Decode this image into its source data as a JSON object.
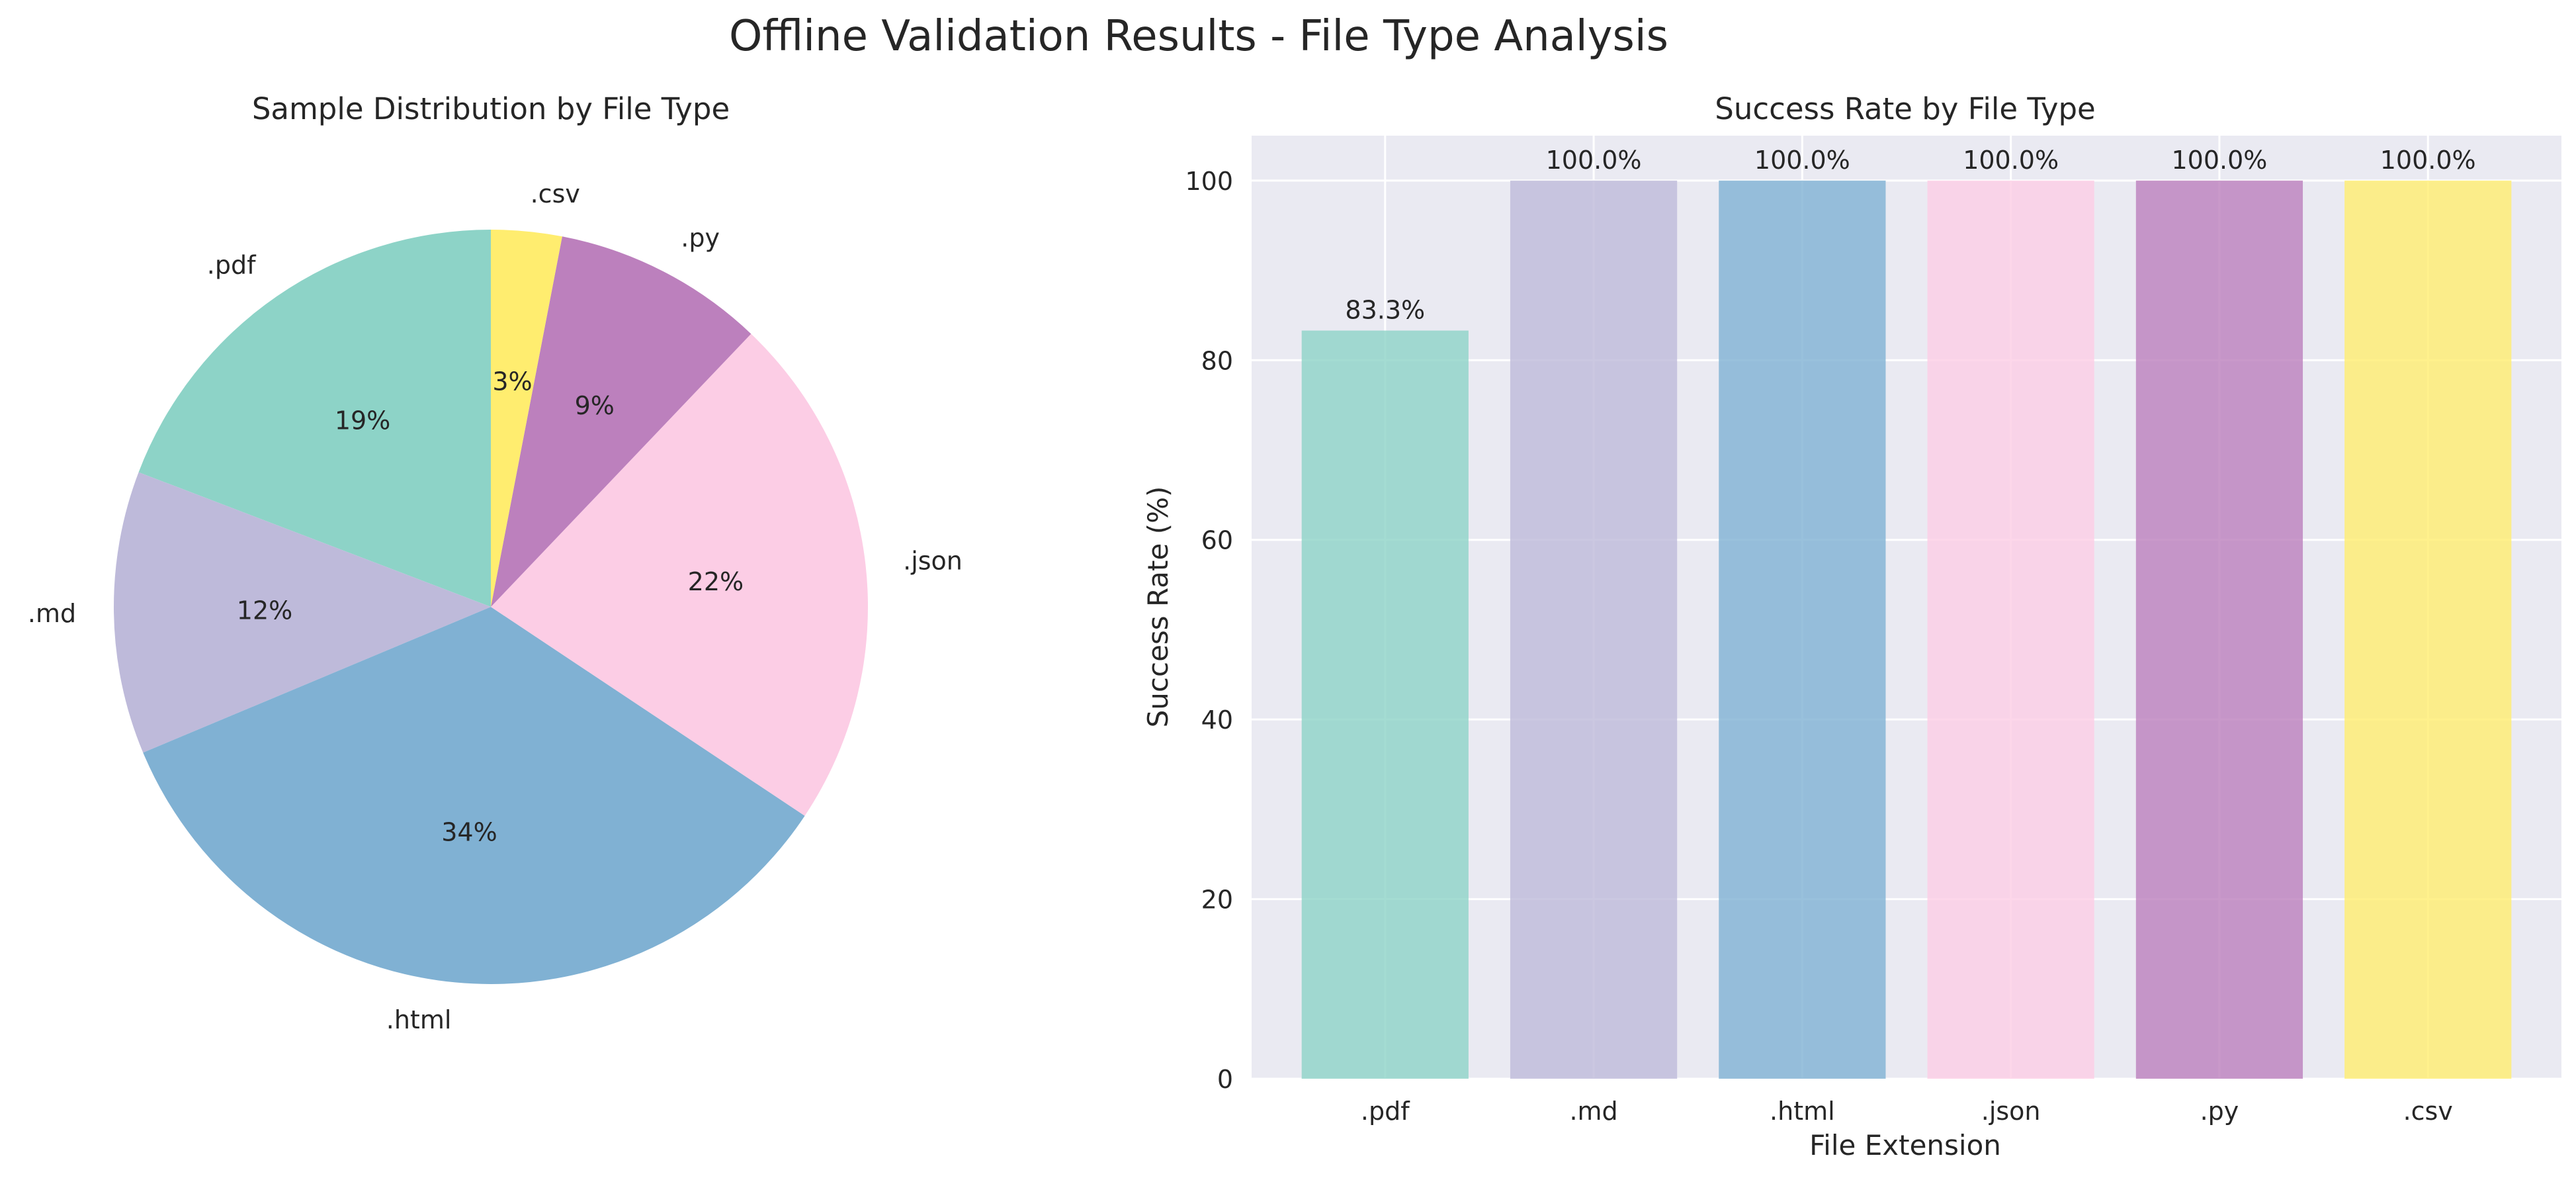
{
  "figure": {
    "title": "Offline Validation Results - File Type Analysis"
  },
  "colors": {
    "background": "#ffffff",
    "axes_face": "#eaeaf2",
    "grid": "#ffffff",
    "text": "#262626"
  },
  "chart_data": [
    {
      "type": "pie",
      "title": "Sample Distribution by File Type",
      "categories": [
        ".pdf",
        ".md",
        ".html",
        ".json",
        ".py",
        ".csv"
      ],
      "values": [
        19,
        12,
        34,
        22,
        9,
        3
      ],
      "labels": [
        "19%",
        "12%",
        "34%",
        "22%",
        "9%",
        "3%"
      ],
      "colors": [
        "#8dd3c7",
        "#bebada",
        "#80b1d3",
        "#fccde5",
        "#bc80bd",
        "#ffed6f"
      ],
      "start_angle_deg": 90,
      "direction": "counterclockwise"
    },
    {
      "type": "bar",
      "title": "Success Rate by File Type",
      "categories": [
        ".pdf",
        ".md",
        ".html",
        ".json",
        ".py",
        ".csv"
      ],
      "values": [
        83.3,
        100.0,
        100.0,
        100.0,
        100.0,
        100.0
      ],
      "value_labels": [
        "83.3%",
        "100.0%",
        "100.0%",
        "100.0%",
        "100.0%",
        "100.0%"
      ],
      "colors": [
        "#8dd3c7",
        "#bebada",
        "#80b1d3",
        "#fccde5",
        "#bc80bd",
        "#ffed6f"
      ],
      "xlabel": "File Extension",
      "ylabel": "Success Rate (%)",
      "ylim": [
        0,
        105
      ],
      "yticks": [
        0,
        20,
        40,
        60,
        80,
        100
      ],
      "grid": true
    }
  ]
}
